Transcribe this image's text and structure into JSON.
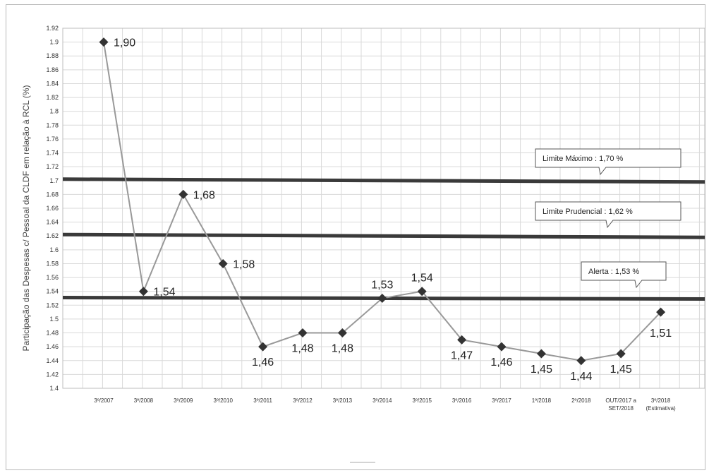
{
  "chart_data": {
    "type": "line",
    "title": "",
    "ylabel": "Participação das Despesas c/ Pessoal da CLDF em relação à RCL  (%)",
    "xlabel": "",
    "ylim": [
      1.4,
      1.92
    ],
    "ytick_step": 0.02,
    "grid": true,
    "categories": [
      [
        "3º/2007"
      ],
      [
        "3º/2008"
      ],
      [
        "3º/2009"
      ],
      [
        "3º/2010"
      ],
      [
        "3º/2011"
      ],
      [
        "3º/2012"
      ],
      [
        "3º/2013"
      ],
      [
        "3º/2014"
      ],
      [
        "3º/2015"
      ],
      [
        "3º/2016"
      ],
      [
        "3º/2017"
      ],
      [
        "1º/2018"
      ],
      [
        "2º/2018"
      ],
      [
        "OUT/2017 a",
        "SET/2018"
      ],
      [
        "3º/2018",
        "(Estimativa)"
      ]
    ],
    "values": [
      1.9,
      1.54,
      1.68,
      1.58,
      1.46,
      1.48,
      1.48,
      1.53,
      1.54,
      1.47,
      1.46,
      1.45,
      1.44,
      1.45,
      1.51
    ],
    "data_labels": [
      "1,90",
      "1,54",
      "1,68",
      "1,58",
      "1,46",
      "1,48",
      "1,48",
      "1,53",
      "1,54",
      "1,47",
      "1,46",
      "1,45",
      "1,44",
      "1,45",
      "1,51"
    ],
    "label_position": [
      "right",
      "right",
      "right",
      "right",
      "below",
      "below",
      "below",
      "above",
      "above",
      "below",
      "below",
      "below",
      "below",
      "below",
      "below"
    ],
    "thresholds": [
      {
        "label": "Limite Máximo  :  1,70 %",
        "value": 1.7
      },
      {
        "label": "Limite Prudencial : 1,62  %",
        "value": 1.62
      },
      {
        "label": "Alerta : 1,53 %",
        "value": 1.53
      }
    ],
    "colors": {
      "line": "#999999",
      "marker": "#333333",
      "threshold": "#3a3a3a",
      "grid": "#d9d9d9"
    }
  }
}
